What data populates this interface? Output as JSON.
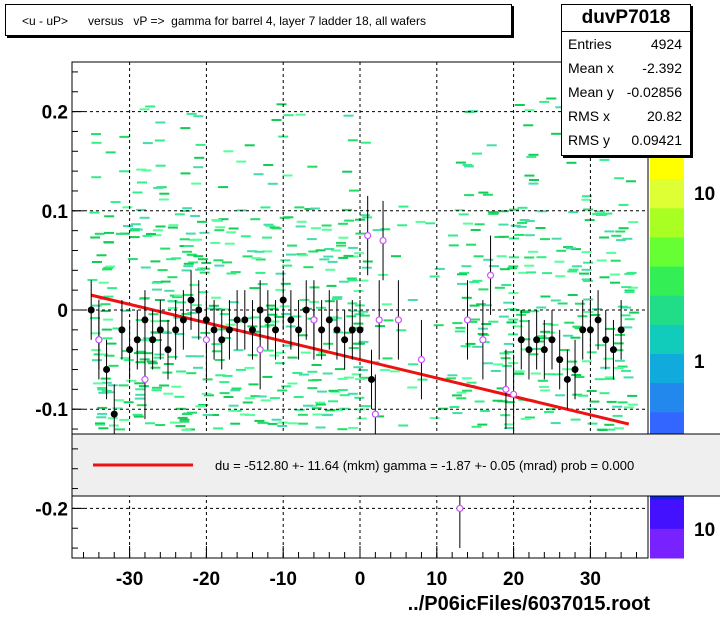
{
  "title": "<u - uP>      versus   vP =>  gamma for barrel 4, layer 7 ladder 18, all wafers",
  "stats": {
    "name": "duvP7018",
    "rows": [
      {
        "label": "Entries",
        "value": "4924"
      },
      {
        "label": "Mean x",
        "value": "-2.392"
      },
      {
        "label": "Mean y",
        "value": "-0.02856"
      },
      {
        "label": "RMS x",
        "value": "20.82"
      },
      {
        "label": "RMS y",
        "value": "0.09421"
      }
    ]
  },
  "footer": "../P06icFiles/6037015.root",
  "legend": {
    "text": "du = -512.80 +- 11.64 (mkm) gamma =   -1.87 +-  0.05 (mrad) prob = 0.000"
  },
  "colors": {
    "fit_line": "#ee1111",
    "density": "#22dd66",
    "profile_point": "#000000",
    "alt_point": "#cc55ff"
  },
  "chart_data": {
    "type": "scatter",
    "xlim": [
      -37.5,
      37.5
    ],
    "ylim": [
      -0.25,
      0.25
    ],
    "x_ticks": [
      -30,
      -20,
      -10,
      0,
      10,
      20,
      30
    ],
    "y_ticks": [
      0.2,
      0.1,
      0,
      -0.1,
      -0.2
    ],
    "y_tick_labels": [
      "0.2",
      "0.1",
      "0",
      "-0.1",
      "-0.2"
    ],
    "grid": true,
    "colorbar_labels": [
      "10",
      "1",
      "10"
    ],
    "fit_line": {
      "x": [
        -35,
        35
      ],
      "y": [
        0.015,
        -0.115
      ]
    },
    "profile_points": [
      {
        "x": -35,
        "y": 0.0
      },
      {
        "x": -34,
        "y": -0.03
      },
      {
        "x": -33,
        "y": -0.06
      },
      {
        "x": -32,
        "y": -0.105
      },
      {
        "x": -31,
        "y": -0.02
      },
      {
        "x": -30,
        "y": -0.04
      },
      {
        "x": -29,
        "y": -0.03
      },
      {
        "x": -28,
        "y": -0.01
      },
      {
        "x": -27,
        "y": -0.03
      },
      {
        "x": -26,
        "y": -0.02
      },
      {
        "x": -25,
        "y": -0.04
      },
      {
        "x": -24,
        "y": -0.02
      },
      {
        "x": -23,
        "y": -0.01
      },
      {
        "x": -22,
        "y": 0.01
      },
      {
        "x": -21,
        "y": 0.0
      },
      {
        "x": -20,
        "y": -0.01
      },
      {
        "x": -19,
        "y": -0.02
      },
      {
        "x": -18,
        "y": -0.03
      },
      {
        "x": -17,
        "y": -0.02
      },
      {
        "x": -16,
        "y": -0.01
      },
      {
        "x": -15,
        "y": -0.01
      },
      {
        "x": -14,
        "y": -0.02
      },
      {
        "x": -13,
        "y": 0.0
      },
      {
        "x": -12,
        "y": -0.01
      },
      {
        "x": -11,
        "y": -0.02
      },
      {
        "x": -10,
        "y": 0.01
      },
      {
        "x": -9,
        "y": -0.01
      },
      {
        "x": -8,
        "y": -0.02
      },
      {
        "x": -7,
        "y": 0.0
      },
      {
        "x": -6,
        "y": -0.01
      },
      {
        "x": -5,
        "y": -0.02
      },
      {
        "x": -4,
        "y": -0.01
      },
      {
        "x": -3,
        "y": -0.02
      },
      {
        "x": -2,
        "y": -0.03
      },
      {
        "x": -1,
        "y": -0.02
      },
      {
        "x": 0,
        "y": -0.02
      },
      {
        "x": 1.5,
        "y": -0.07
      },
      {
        "x": 21,
        "y": -0.03
      },
      {
        "x": 22,
        "y": -0.04
      },
      {
        "x": 23,
        "y": -0.03
      },
      {
        "x": 24,
        "y": -0.04
      },
      {
        "x": 25,
        "y": -0.03
      },
      {
        "x": 26,
        "y": -0.05
      },
      {
        "x": 27,
        "y": -0.07
      },
      {
        "x": 28,
        "y": -0.06
      },
      {
        "x": 29,
        "y": -0.02
      },
      {
        "x": 30,
        "y": -0.02
      },
      {
        "x": 31,
        "y": -0.01
      },
      {
        "x": 32,
        "y": -0.03
      },
      {
        "x": 33,
        "y": -0.04
      },
      {
        "x": 34,
        "y": -0.02
      }
    ],
    "alt_points": [
      {
        "x": -34,
        "y": -0.03
      },
      {
        "x": -28,
        "y": -0.07
      },
      {
        "x": -20,
        "y": -0.03
      },
      {
        "x": -13,
        "y": -0.04
      },
      {
        "x": -6,
        "y": -0.01
      },
      {
        "x": 1,
        "y": 0.075
      },
      {
        "x": 2,
        "y": -0.105
      },
      {
        "x": 3,
        "y": 0.07
      },
      {
        "x": 2.5,
        "y": -0.01
      },
      {
        "x": 5,
        "y": -0.01
      },
      {
        "x": 8,
        "y": -0.05
      },
      {
        "x": 13,
        "y": -0.2
      },
      {
        "x": 14,
        "y": -0.01
      },
      {
        "x": 16,
        "y": -0.03
      },
      {
        "x": 17,
        "y": 0.035
      },
      {
        "x": 19,
        "y": -0.08
      },
      {
        "x": 20,
        "y": -0.085
      }
    ]
  }
}
